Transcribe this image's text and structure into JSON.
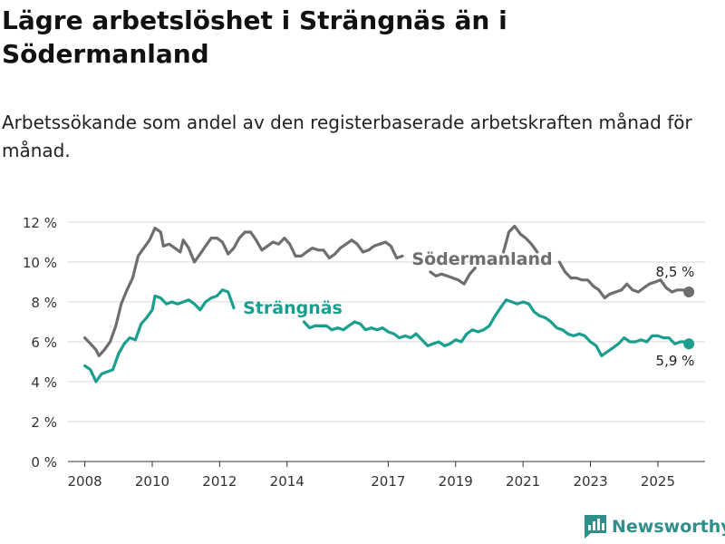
{
  "header": {
    "title": "Lägre arbetslöshet i Strängnäs än i Södermanland",
    "subtitle": "Arbetssökande som andel av den registerbaserade arbetskraften månad för månad."
  },
  "brand": {
    "name": "Newsworthy"
  },
  "colors": {
    "sodermanland": "#6e6e6e",
    "strangnas": "#1a9e8f",
    "grid": "#d9d9d9",
    "axis": "#333333"
  },
  "chart_data": {
    "type": "line",
    "title": "Lägre arbetslöshet i Strängnäs än i Södermanland",
    "xlabel": "",
    "ylabel": "",
    "ylim": [
      0,
      12
    ],
    "xlim": [
      2007.5,
      2026.4
    ],
    "y_ticks": [
      0,
      2,
      4,
      6,
      8,
      10,
      12
    ],
    "y_tick_labels": [
      "0 %",
      "2 %",
      "4 %",
      "6 %",
      "8 %",
      "10 %",
      "12 %"
    ],
    "x_ticks": [
      2008,
      2010,
      2012,
      2014,
      2017,
      2019,
      2021,
      2023,
      2025
    ],
    "x_tick_labels": [
      "2008",
      "2010",
      "2012",
      "2014",
      "2017",
      "2019",
      "2021",
      "2023",
      "2025"
    ],
    "grid": true,
    "series": [
      {
        "name": "Södermanland",
        "label": "Södermanland",
        "last_value_label": "8,5 %",
        "points": [
          [
            2008.0,
            6.2
          ],
          [
            2008.17,
            5.9
          ],
          [
            2008.33,
            5.6
          ],
          [
            2008.42,
            5.3
          ],
          [
            2008.58,
            5.6
          ],
          [
            2008.75,
            6.0
          ],
          [
            2008.92,
            6.8
          ],
          [
            2009.08,
            7.9
          ],
          [
            2009.25,
            8.6
          ],
          [
            2009.42,
            9.2
          ],
          [
            2009.58,
            10.3
          ],
          [
            2009.75,
            10.7
          ],
          [
            2009.92,
            11.1
          ],
          [
            2010.08,
            11.7
          ],
          [
            2010.25,
            11.5
          ],
          [
            2010.33,
            10.8
          ],
          [
            2010.5,
            10.9
          ],
          [
            2010.67,
            10.7
          ],
          [
            2010.83,
            10.5
          ],
          [
            2010.92,
            11.1
          ],
          [
            2011.08,
            10.7
          ],
          [
            2011.25,
            10.0
          ],
          [
            2011.42,
            10.4
          ],
          [
            2011.58,
            10.8
          ],
          [
            2011.75,
            11.2
          ],
          [
            2011.92,
            11.2
          ],
          [
            2012.08,
            11.0
          ],
          [
            2012.25,
            10.4
          ],
          [
            2012.42,
            10.7
          ],
          [
            2012.58,
            11.2
          ],
          [
            2012.75,
            11.5
          ],
          [
            2012.92,
            11.5
          ],
          [
            2013.08,
            11.1
          ],
          [
            2013.25,
            10.6
          ],
          [
            2013.42,
            10.8
          ],
          [
            2013.58,
            11.0
          ],
          [
            2013.75,
            10.9
          ],
          [
            2013.92,
            11.2
          ],
          [
            2014.08,
            10.9
          ],
          [
            2014.25,
            10.3
          ],
          [
            2014.42,
            10.3
          ],
          [
            2014.58,
            10.5
          ],
          [
            2014.75,
            10.7
          ],
          [
            2014.92,
            10.6
          ],
          [
            2015.08,
            10.6
          ],
          [
            2015.25,
            10.2
          ],
          [
            2015.42,
            10.4
          ],
          [
            2015.58,
            10.7
          ],
          [
            2015.75,
            10.9
          ],
          [
            2015.92,
            11.1
          ],
          [
            2016.08,
            10.9
          ],
          [
            2016.25,
            10.5
          ],
          [
            2016.42,
            10.6
          ],
          [
            2016.58,
            10.8
          ],
          [
            2016.75,
            10.9
          ],
          [
            2016.92,
            11.0
          ],
          [
            2017.08,
            10.8
          ],
          [
            2017.25,
            10.2
          ],
          [
            2017.42,
            10.3
          ],
          null,
          [
            2018.25,
            9.5
          ],
          [
            2018.42,
            9.3
          ],
          [
            2018.58,
            9.4
          ],
          [
            2018.75,
            9.3
          ],
          [
            2018.92,
            9.2
          ],
          [
            2019.08,
            9.1
          ],
          [
            2019.25,
            8.9
          ],
          [
            2019.42,
            9.4
          ],
          [
            2019.58,
            9.7
          ],
          null,
          [
            2020.42,
            10.5
          ],
          [
            2020.58,
            11.5
          ],
          [
            2020.75,
            11.8
          ],
          [
            2020.92,
            11.4
          ],
          [
            2021.08,
            11.2
          ],
          [
            2021.25,
            10.9
          ],
          [
            2021.42,
            10.5
          ],
          null,
          [
            2022.08,
            10.0
          ],
          [
            2022.25,
            9.5
          ],
          [
            2022.42,
            9.2
          ],
          [
            2022.58,
            9.2
          ],
          [
            2022.75,
            9.1
          ],
          [
            2022.92,
            9.1
          ],
          [
            2023.08,
            8.8
          ],
          [
            2023.25,
            8.6
          ],
          [
            2023.42,
            8.2
          ],
          [
            2023.58,
            8.4
          ],
          [
            2023.75,
            8.5
          ],
          [
            2023.92,
            8.6
          ],
          [
            2024.08,
            8.9
          ],
          [
            2024.25,
            8.6
          ],
          [
            2024.42,
            8.5
          ],
          [
            2024.58,
            8.7
          ],
          [
            2024.75,
            8.9
          ],
          [
            2024.92,
            9.0
          ],
          [
            2025.08,
            9.1
          ],
          [
            2025.25,
            8.7
          ],
          [
            2025.42,
            8.5
          ],
          [
            2025.58,
            8.6
          ],
          [
            2025.75,
            8.6
          ],
          [
            2025.92,
            8.5
          ]
        ]
      },
      {
        "name": "Strängnäs",
        "label": "Strängnäs",
        "last_value_label": "5,9 %",
        "points": [
          [
            2008.0,
            4.8
          ],
          [
            2008.17,
            4.6
          ],
          [
            2008.33,
            4.0
          ],
          [
            2008.5,
            4.4
          ],
          [
            2008.67,
            4.5
          ],
          [
            2008.83,
            4.6
          ],
          [
            2009.0,
            5.4
          ],
          [
            2009.17,
            5.9
          ],
          [
            2009.33,
            6.2
          ],
          [
            2009.5,
            6.1
          ],
          [
            2009.67,
            6.9
          ],
          [
            2009.83,
            7.2
          ],
          [
            2010.0,
            7.6
          ],
          [
            2010.08,
            8.3
          ],
          [
            2010.25,
            8.2
          ],
          [
            2010.42,
            7.9
          ],
          [
            2010.58,
            8.0
          ],
          [
            2010.75,
            7.9
          ],
          [
            2010.92,
            8.0
          ],
          [
            2011.08,
            8.1
          ],
          [
            2011.25,
            7.9
          ],
          [
            2011.42,
            7.6
          ],
          [
            2011.58,
            8.0
          ],
          [
            2011.75,
            8.2
          ],
          [
            2011.92,
            8.3
          ],
          [
            2012.08,
            8.6
          ],
          [
            2012.25,
            8.5
          ],
          [
            2012.42,
            7.7
          ],
          null,
          [
            2014.5,
            7.0
          ],
          [
            2014.67,
            6.7
          ],
          [
            2014.83,
            6.8
          ],
          [
            2015.0,
            6.8
          ],
          [
            2015.17,
            6.8
          ],
          [
            2015.33,
            6.6
          ],
          [
            2015.5,
            6.7
          ],
          [
            2015.67,
            6.6
          ],
          [
            2015.83,
            6.8
          ],
          [
            2016.0,
            7.0
          ],
          [
            2016.17,
            6.9
          ],
          [
            2016.33,
            6.6
          ],
          [
            2016.5,
            6.7
          ],
          [
            2016.67,
            6.6
          ],
          [
            2016.83,
            6.7
          ],
          [
            2017.0,
            6.5
          ],
          [
            2017.17,
            6.4
          ],
          [
            2017.33,
            6.2
          ],
          [
            2017.5,
            6.3
          ],
          [
            2017.67,
            6.2
          ],
          [
            2017.83,
            6.4
          ],
          [
            2018.0,
            6.1
          ],
          [
            2018.17,
            5.8
          ],
          [
            2018.33,
            5.9
          ],
          [
            2018.5,
            6.0
          ],
          [
            2018.67,
            5.8
          ],
          [
            2018.83,
            5.9
          ],
          [
            2019.0,
            6.1
          ],
          [
            2019.17,
            6.0
          ],
          [
            2019.33,
            6.4
          ],
          [
            2019.5,
            6.6
          ],
          [
            2019.67,
            6.5
          ],
          [
            2019.83,
            6.6
          ],
          [
            2020.0,
            6.8
          ],
          [
            2020.17,
            7.3
          ],
          [
            2020.33,
            7.7
          ],
          [
            2020.5,
            8.1
          ],
          [
            2020.67,
            8.0
          ],
          [
            2020.83,
            7.9
          ],
          [
            2021.0,
            8.0
          ],
          [
            2021.17,
            7.9
          ],
          [
            2021.33,
            7.5
          ],
          [
            2021.5,
            7.3
          ],
          [
            2021.67,
            7.2
          ],
          [
            2021.83,
            7.0
          ],
          [
            2022.0,
            6.7
          ],
          [
            2022.17,
            6.6
          ],
          [
            2022.33,
            6.4
          ],
          [
            2022.5,
            6.3
          ],
          [
            2022.67,
            6.4
          ],
          [
            2022.83,
            6.3
          ],
          [
            2023.0,
            6.0
          ],
          [
            2023.17,
            5.8
          ],
          [
            2023.33,
            5.3
          ],
          [
            2023.5,
            5.5
          ],
          [
            2023.67,
            5.7
          ],
          [
            2023.83,
            5.9
          ],
          [
            2024.0,
            6.2
          ],
          [
            2024.17,
            6.0
          ],
          [
            2024.33,
            6.0
          ],
          [
            2024.5,
            6.1
          ],
          [
            2024.67,
            6.0
          ],
          [
            2024.83,
            6.3
          ],
          [
            2025.0,
            6.3
          ],
          [
            2025.17,
            6.2
          ],
          [
            2025.33,
            6.2
          ],
          [
            2025.5,
            5.9
          ],
          [
            2025.67,
            6.0
          ],
          [
            2025.83,
            6.0
          ],
          [
            2025.92,
            5.9
          ]
        ]
      }
    ]
  }
}
